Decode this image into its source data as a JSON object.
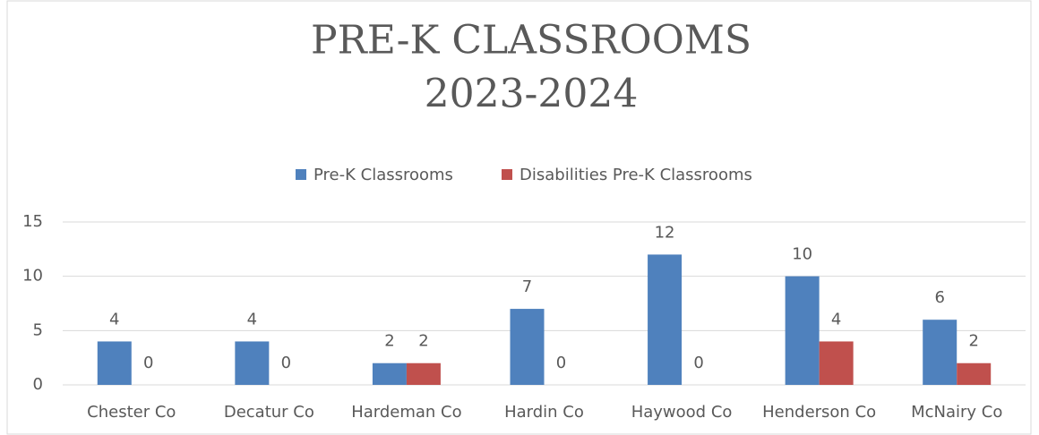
{
  "chart_data": {
    "type": "bar",
    "title": [
      "PRE-K CLASSROOMS",
      "2023-2024"
    ],
    "categories": [
      "Chester Co",
      "Decatur Co",
      "Hardeman Co",
      "Hardin Co",
      "Haywood Co",
      "Henderson Co",
      "McNairy Co"
    ],
    "series": [
      {
        "name": "Pre-K Classrooms",
        "color": "#4f81bd",
        "values": [
          4,
          4,
          2,
          7,
          12,
          10,
          6
        ]
      },
      {
        "name": "Disabilities Pre-K Classrooms",
        "color": "#c0504d",
        "values": [
          0,
          0,
          2,
          0,
          0,
          4,
          2
        ]
      }
    ],
    "ylim": [
      0,
      15
    ],
    "yticks": [
      0,
      5,
      10,
      15
    ],
    "grid": true,
    "legend": "top"
  }
}
